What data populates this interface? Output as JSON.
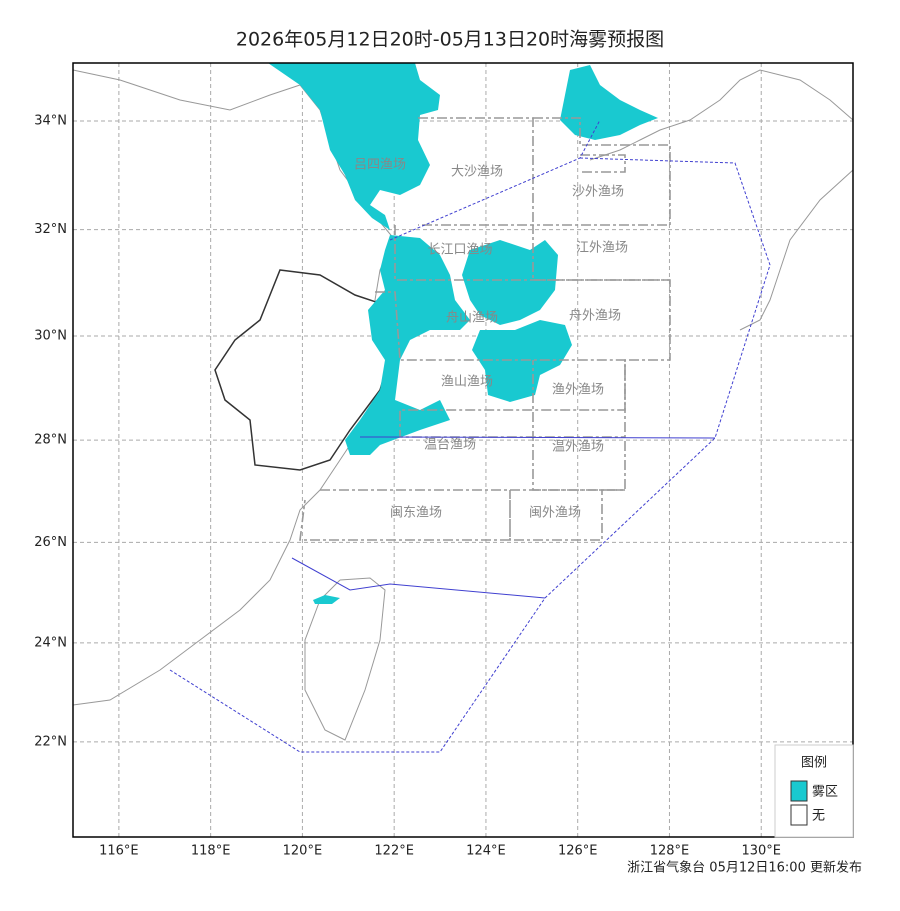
{
  "title": "2026年05月12日20时-05月13日20时海雾预报图",
  "map": {
    "xlim": [
      115,
      132
    ],
    "ylim": [
      20.05,
      35.05
    ],
    "xticks": [
      {
        "value": 116,
        "label": "116°E"
      },
      {
        "value": 118,
        "label": "118°E"
      },
      {
        "value": 120,
        "label": "120°E"
      },
      {
        "value": 122,
        "label": "122°E"
      },
      {
        "value": 124,
        "label": "124°E"
      },
      {
        "value": 126,
        "label": "126°E"
      },
      {
        "value": 128,
        "label": "128°E"
      },
      {
        "value": 130,
        "label": "130°E"
      }
    ],
    "yticks": [
      {
        "value": 22,
        "label": "22°N"
      },
      {
        "value": 24,
        "label": "24°N"
      },
      {
        "value": 26,
        "label": "26°N"
      },
      {
        "value": 28,
        "label": "28°N"
      },
      {
        "value": 30,
        "label": "30°N"
      },
      {
        "value": 32,
        "label": "32°N"
      },
      {
        "value": 34,
        "label": "34°N"
      }
    ]
  },
  "fishing_grounds": [
    "吕四渔场",
    "大沙渔场",
    "沙外渔场",
    "长江口渔场",
    "江外渔场",
    "舟山渔场",
    "舟外渔场",
    "渔山渔场",
    "渔外渔场",
    "温台渔场",
    "温外渔场",
    "闽东渔场",
    "闽外渔场"
  ],
  "legend": {
    "title": "图例",
    "items": [
      {
        "label": "雾区",
        "color": "#19c9d0"
      },
      {
        "label": "无",
        "color": "#ffffff"
      }
    ]
  },
  "footer": "浙江省气象台 05月12日16:00 更新发布"
}
